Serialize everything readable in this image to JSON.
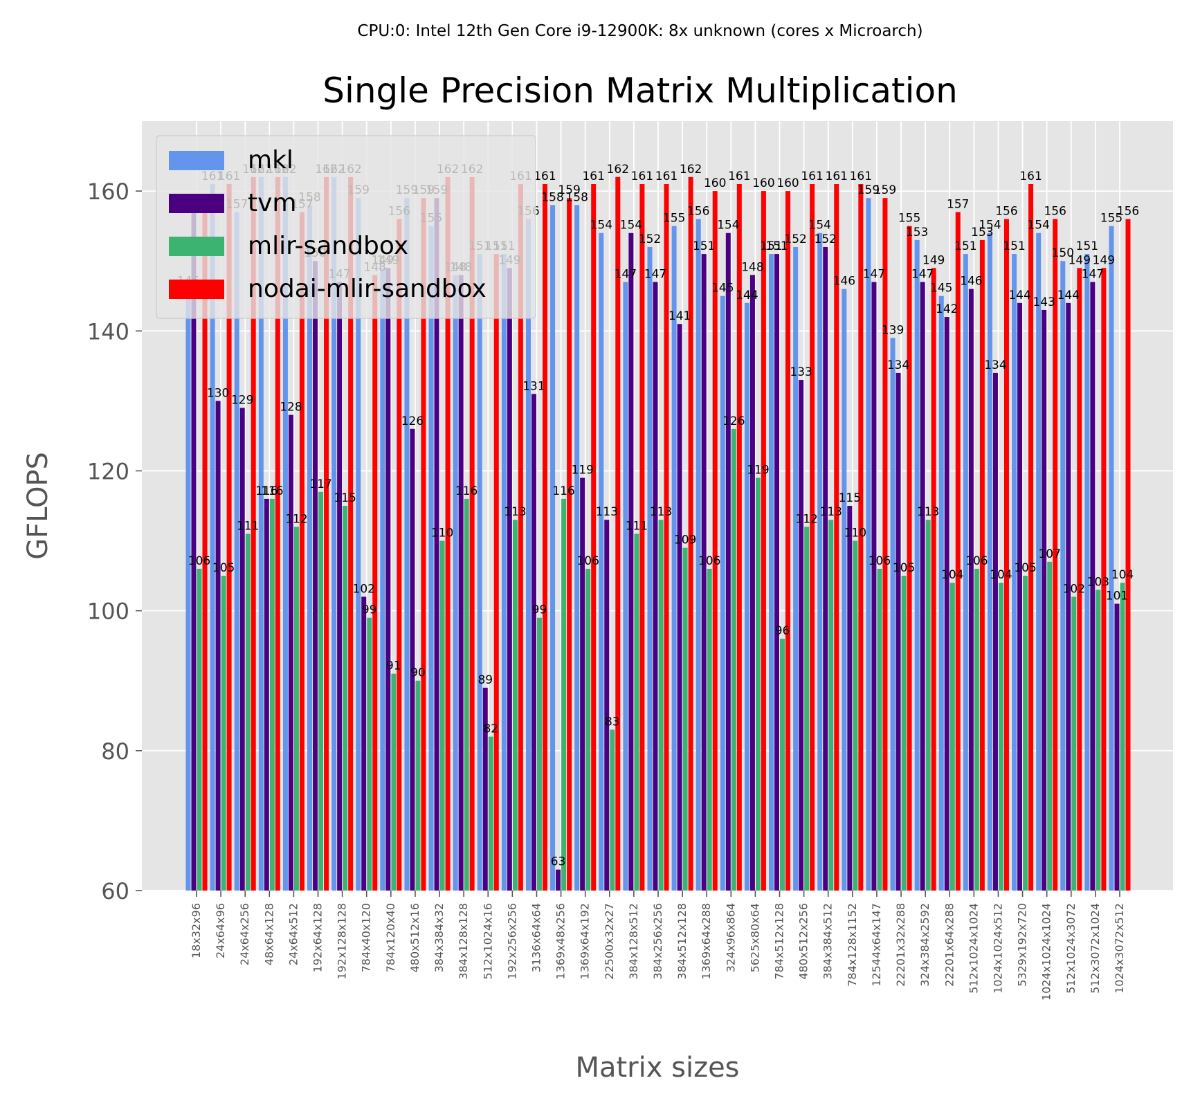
{
  "chart_data": {
    "type": "bar",
    "suptitle": "CPU:0: Intel 12th Gen Core i9-12900K: 8x unknown (cores x Microarch)",
    "title": "Single Precision Matrix Multiplication",
    "xlabel": "Matrix sizes",
    "ylabel": "GFLOPS",
    "ylim": [
      60,
      170
    ],
    "yticks": [
      60,
      80,
      100,
      120,
      140,
      160
    ],
    "grid": true,
    "legend_position": "top-left",
    "categories": [
      "18x32x96",
      "24x64x96",
      "24x64x256",
      "48x64x128",
      "24x64x512",
      "192x64x128",
      "192x128x128",
      "784x40x120",
      "784x120x40",
      "480x512x16",
      "384x384x32",
      "384x128x128",
      "512x1024x16",
      "192x256x256",
      "3136x64x64",
      "1369x48x256",
      "1369x64x192",
      "22500x32x27",
      "384x128x512",
      "384x256x256",
      "384x512x128",
      "1369x64x288",
      "324x96x864",
      "5625x80x64",
      "784x512x128",
      "480x512x256",
      "384x384x512",
      "784x128x1152",
      "12544x64x147",
      "22201x32x288",
      "324x384x2592",
      "22201x64x288",
      "512x1024x1024",
      "1024x1024x512",
      "5329x192x720",
      "1024x1024x1024",
      "512x1024x3072",
      "512x3072x1024",
      "1024x3072x512"
    ],
    "series": [
      {
        "name": "mkl",
        "color": "#6495ED",
        "values": [
          146,
          161,
          157,
          162,
          162,
          158,
          162,
          159,
          149,
          159,
          155,
          148,
          151,
          151,
          156,
          158,
          158,
          154,
          147,
          152,
          155,
          156,
          145,
          144,
          151,
          152,
          154,
          146,
          159,
          139,
          153,
          145,
          151,
          154,
          151,
          154,
          150,
          151,
          155
        ]
      },
      {
        "name": "tvm",
        "color": "#4B0082",
        "values": [
          157,
          130,
          129,
          116,
          128,
          150,
          147,
          102,
          149,
          126,
          159,
          148,
          89,
          149,
          131,
          63,
          119,
          113,
          154,
          147,
          141,
          151,
          154,
          148,
          151,
          133,
          152,
          115,
          147,
          134,
          147,
          142,
          146,
          134,
          144,
          143,
          144,
          147,
          101
        ]
      },
      {
        "name": "mlir-sandbox",
        "color": "#3CB371",
        "values": [
          106,
          105,
          111,
          116,
          112,
          117,
          115,
          99,
          91,
          90,
          110,
          116,
          82,
          113,
          99,
          116,
          106,
          83,
          111,
          113,
          109,
          106,
          126,
          119,
          96,
          112,
          113,
          110,
          106,
          105,
          113,
          104,
          106,
          104,
          105,
          107,
          102,
          103,
          104
        ]
      },
      {
        "name": "nodai-mlir-sandbox",
        "color": "#FF0000",
        "values": [
          157,
          161,
          162,
          162,
          157,
          162,
          162,
          148,
          156,
          159,
          162,
          162,
          151,
          161,
          161,
          159,
          161,
          162,
          161,
          161,
          162,
          160,
          161,
          160,
          160,
          161,
          161,
          161,
          159,
          155,
          149,
          157,
          153,
          156,
          161,
          156,
          149,
          149,
          156
        ]
      }
    ]
  }
}
